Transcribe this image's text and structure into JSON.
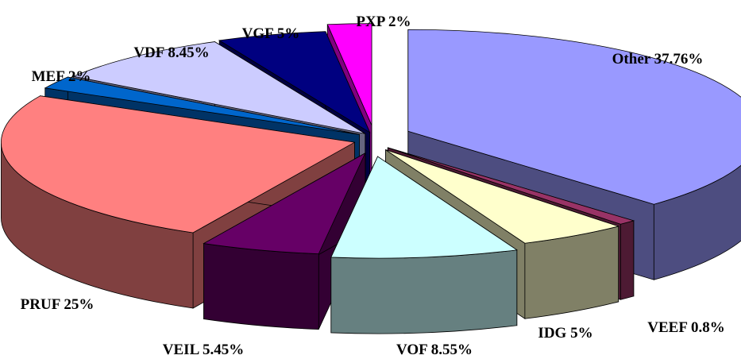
{
  "chart_data": {
    "type": "pie",
    "title": "",
    "style": "3d-exploded",
    "start_angle_deg": -90,
    "direction": "clockwise",
    "slices": [
      {
        "name": "Other",
        "label": "Other 37.76%",
        "value": 37.76,
        "color": "#9999ff"
      },
      {
        "name": "VEEF",
        "label": "VEEF 0.8%",
        "value": 0.8,
        "color": "#993366"
      },
      {
        "name": "IDG",
        "label": "IDG 5%",
        "value": 5,
        "color": "#ffffcc"
      },
      {
        "name": "VOF",
        "label": "VOF 8.55%",
        "value": 8.55,
        "color": "#ccffff"
      },
      {
        "name": "VEIL",
        "label": "VEIL 5.45%",
        "value": 5.45,
        "color": "#660066"
      },
      {
        "name": "PRUF",
        "label": "PRUF 25%",
        "value": 25,
        "color": "#ff8080"
      },
      {
        "name": "MEF",
        "label": "MEF 2%",
        "value": 2,
        "color": "#0066cc"
      },
      {
        "name": "VDF",
        "label": "VDF 8.45%",
        "value": 8.45,
        "color": "#ccccff"
      },
      {
        "name": "VGF",
        "label": "VGF 5%",
        "value": 5,
        "color": "#000080"
      },
      {
        "name": "PXP",
        "label": "PXP 2%",
        "value": 2,
        "color": "#ff00ff"
      }
    ]
  }
}
